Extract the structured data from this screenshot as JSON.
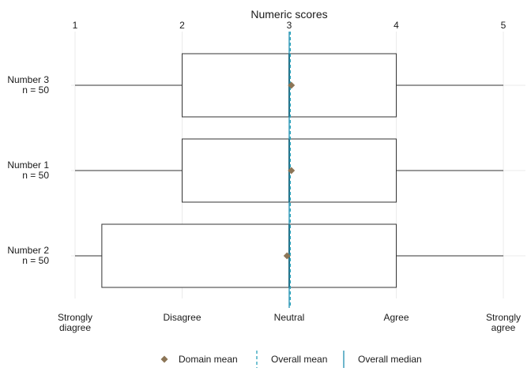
{
  "chart_data": {
    "type": "boxplot",
    "title": "Numeric scores",
    "x_axis_top": {
      "label": "Numeric scores",
      "ticks": [
        1,
        2,
        3,
        4,
        5
      ],
      "tick_labels": [
        "1",
        "2",
        "3",
        "4",
        "5"
      ]
    },
    "x_axis_bottom": {
      "ticks": [
        1,
        2,
        3,
        4,
        5
      ],
      "tick_labels": [
        [
          "Strongly",
          "diagree"
        ],
        [
          "Disagree"
        ],
        [
          "Neutral"
        ],
        [
          "Agree"
        ],
        [
          "Strongly",
          "agree"
        ]
      ]
    },
    "xlim": [
      1,
      5
    ],
    "grid": true,
    "legend_position": "bottom",
    "categories": [
      {
        "name": "Number 3",
        "n_label": "n = 50",
        "min": 1,
        "q1": 2,
        "median": 3,
        "q3": 4,
        "max": 5,
        "mean": 3.02
      },
      {
        "name": "Number 1",
        "n_label": "n = 50",
        "min": 1,
        "q1": 2,
        "median": 3,
        "q3": 4,
        "max": 5,
        "mean": 3.02
      },
      {
        "name": "Number 2",
        "n_label": "n = 50",
        "min": 1,
        "q1": 1.25,
        "median": 3,
        "q3": 4,
        "max": 5,
        "mean": 2.98
      }
    ],
    "overall_mean": 3.01,
    "overall_median": 3,
    "legend": [
      {
        "key": "domain_mean",
        "label": "Domain mean"
      },
      {
        "key": "overall_mean",
        "label": "Overall mean"
      },
      {
        "key": "overall_median",
        "label": "Overall median"
      }
    ],
    "colors": {
      "domain_mean": "#8c7556",
      "overall_mean": "#2aa2bb",
      "overall_median": "#1f8fb0",
      "box_stroke": "#333333",
      "grid": "#ebebeb"
    }
  }
}
